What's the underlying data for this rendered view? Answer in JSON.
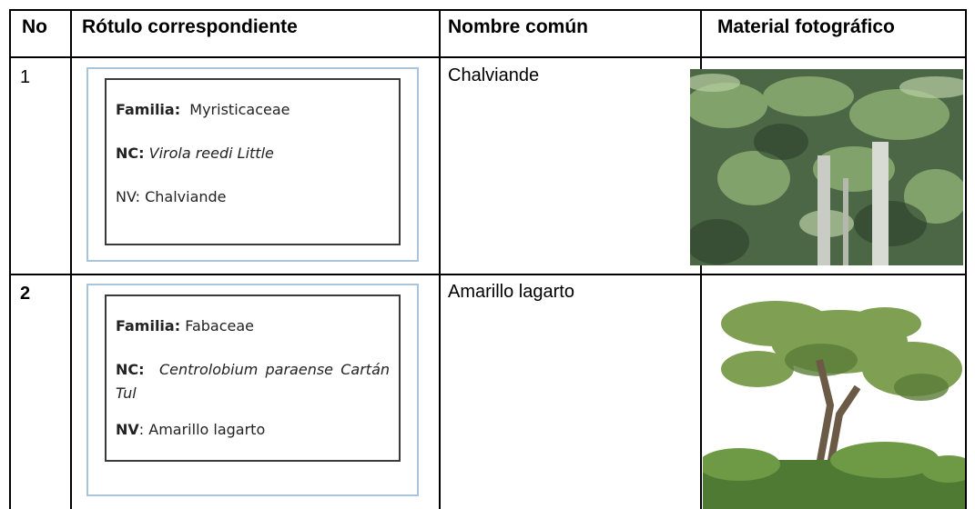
{
  "table": {
    "headers": [
      "No",
      "Rótulo correspondiente",
      "Nombre común",
      "Material fotográfico"
    ],
    "rows": [
      {
        "no": "1",
        "familia_key": "Familia:",
        "familia": "Myristicaceae",
        "nc_key": "NC:",
        "nc": "Virola reedi Little",
        "nv": "NV: Chalviande",
        "common_name": "Chalviande"
      },
      {
        "no": "2",
        "familia_key": "Familia:",
        "familia": "Fabaceae",
        "nc_key": "NC:",
        "nc": "Centrolobium paraense Cartán Tul",
        "nv_key": "NV",
        "nv": ": Amarillo lagarto",
        "common_name": "Amarillo lagarto"
      }
    ]
  }
}
